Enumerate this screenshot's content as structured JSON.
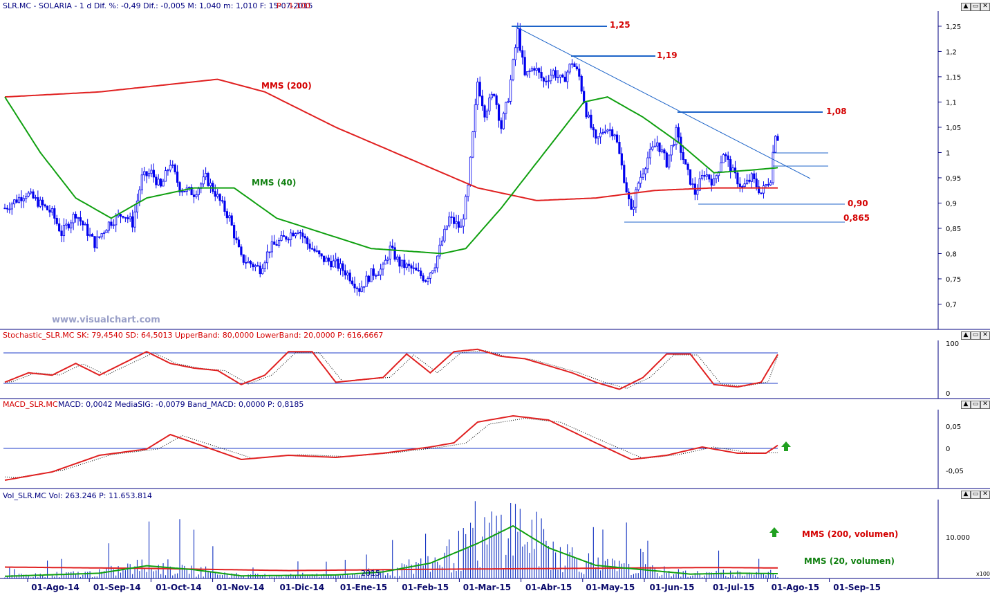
{
  "header": {
    "main": "SLR.MC - SOLARIA - 1 d Dif. %: -0,49 Dif.: -0,005 M: 1,040 m: 1,010 F: 15-07-2015",
    "price": "P : 1,100",
    "stoch": "Stochastic_SLR.MC SK: 79,4540 SD: 64,5013 UpperBand: 80,0000 LowerBand: 20,0000 P: 616,6667",
    "macd_name": "MACD_SLR.MC",
    "macd_vals": "MACD: 0,0042 MediaSIG: -0,0079 Band_MACD: 0,0000 P: 0,8185",
    "vol": "Vol_SLR.MC Vol: 263.246 P: 11.653.814"
  },
  "watermark": "www.visualchart.com",
  "year_label": "2015",
  "window_buttons": [
    "▲",
    "▭",
    "✕"
  ],
  "vol_scale_tag": "x100",
  "colors": {
    "candle": "#0000ee",
    "mma200": "#e02020",
    "mma40": "#10a010",
    "level": "#1c63c8",
    "stoch": "#e02020",
    "macd": "#e02020",
    "bg": "#ffffff",
    "axis": "#000080"
  },
  "annotations": {
    "mms200": "MMS (200)",
    "mms40": "MMS (40)",
    "mms200_vol": "MMS (200, volumen)",
    "mms20_vol": "MMS (20, volumen)"
  },
  "chart_data": [
    {
      "type": "candlestick",
      "title": "SLR.MC - SOLARIA",
      "x_ticks": [
        "01-Ago-14",
        "01-Sep-14",
        "01-Oct-14",
        "01-Nov-14",
        "01-Dic-14",
        "01-Ene-15",
        "01-Feb-15",
        "01-Mar-15",
        "01-Abr-15",
        "01-May-15",
        "01-Jun-15",
        "01-Jul-15",
        "01-Ago-15",
        "01-Sep-15"
      ],
      "y_ticks": [
        "1,25",
        "1,2",
        "1,15",
        "1,1",
        "1,05",
        "1",
        "0,95",
        "0,9",
        "0,85",
        "0,8",
        "0,75",
        "0,7"
      ],
      "ylim": [
        0.65,
        1.28
      ],
      "close_keypoints": [
        [
          0,
          0.89
        ],
        [
          9,
          0.92
        ],
        [
          20,
          0.88
        ],
        [
          24,
          0.84
        ],
        [
          30,
          0.88
        ],
        [
          38,
          0.82
        ],
        [
          44,
          0.86
        ],
        [
          50,
          0.88
        ],
        [
          54,
          0.86
        ],
        [
          58,
          0.95
        ],
        [
          62,
          0.96
        ],
        [
          66,
          0.93
        ],
        [
          70,
          0.98
        ],
        [
          74,
          0.93
        ],
        [
          80,
          0.92
        ],
        [
          85,
          0.95
        ],
        [
          89,
          0.92
        ],
        [
          95,
          0.87
        ],
        [
          100,
          0.79
        ],
        [
          108,
          0.77
        ],
        [
          112,
          0.81
        ],
        [
          118,
          0.83
        ],
        [
          124,
          0.85
        ],
        [
          128,
          0.82
        ],
        [
          134,
          0.79
        ],
        [
          140,
          0.78
        ],
        [
          145,
          0.76
        ],
        [
          150,
          0.73
        ],
        [
          155,
          0.76
        ],
        [
          160,
          0.77
        ],
        [
          163,
          0.81
        ],
        [
          167,
          0.78
        ],
        [
          172,
          0.77
        ],
        [
          178,
          0.75
        ],
        [
          182,
          0.78
        ],
        [
          188,
          0.87
        ],
        [
          193,
          0.85
        ],
        [
          196,
          0.93
        ],
        [
          200,
          1.14
        ],
        [
          203,
          1.08
        ],
        [
          207,
          1.12
        ],
        [
          210,
          1.05
        ],
        [
          213,
          1.11
        ],
        [
          217,
          1.24
        ],
        [
          220,
          1.15
        ],
        [
          224,
          1.17
        ],
        [
          228,
          1.14
        ],
        [
          232,
          1.16
        ],
        [
          236,
          1.14
        ],
        [
          240,
          1.18
        ],
        [
          243,
          1.15
        ],
        [
          246,
          1.08
        ],
        [
          250,
          1.02
        ],
        [
          254,
          1.05
        ],
        [
          258,
          1.04
        ],
        [
          262,
          0.95
        ],
        [
          265,
          0.88
        ],
        [
          268,
          0.94
        ],
        [
          272,
          0.99
        ],
        [
          276,
          1.02
        ],
        [
          280,
          0.98
        ],
        [
          284,
          1.04
        ],
        [
          288,
          0.97
        ],
        [
          292,
          0.92
        ],
        [
          296,
          0.96
        ],
        [
          300,
          0.94
        ],
        [
          304,
          1.0
        ],
        [
          308,
          0.96
        ],
        [
          312,
          0.93
        ],
        [
          316,
          0.95
        ],
        [
          320,
          0.92
        ],
        [
          324,
          0.95
        ],
        [
          325,
          1.0
        ],
        [
          326,
          1.04
        ],
        [
          327,
          1.03
        ]
      ],
      "series": [
        {
          "name": "MMS (200)",
          "values": [
            [
              0,
              1.11
            ],
            [
              40,
              1.12
            ],
            [
              60,
              1.13
            ],
            [
              90,
              1.145
            ],
            [
              110,
              1.12
            ],
            [
              140,
              1.05
            ],
            [
              170,
              0.99
            ],
            [
              200,
              0.93
            ],
            [
              225,
              0.905
            ],
            [
              250,
              0.91
            ],
            [
              275,
              0.925
            ],
            [
              300,
              0.93
            ],
            [
              327,
              0.93
            ]
          ]
        },
        {
          "name": "MMS (40)",
          "values": [
            [
              0,
              1.11
            ],
            [
              15,
              1.0
            ],
            [
              30,
              0.91
            ],
            [
              45,
              0.87
            ],
            [
              60,
              0.91
            ],
            [
              80,
              0.93
            ],
            [
              97,
              0.93
            ],
            [
              115,
              0.87
            ],
            [
              135,
              0.84
            ],
            [
              155,
              0.81
            ],
            [
              170,
              0.805
            ],
            [
              185,
              0.8
            ],
            [
              195,
              0.81
            ],
            [
              210,
              0.89
            ],
            [
              230,
              1.01
            ],
            [
              245,
              1.1
            ],
            [
              255,
              1.11
            ],
            [
              270,
              1.07
            ],
            [
              285,
              1.02
            ],
            [
              300,
              0.96
            ],
            [
              315,
              0.965
            ],
            [
              327,
              0.97
            ]
          ]
        }
      ],
      "levels": [
        "1,25",
        "1,19",
        "1,08",
        "0,90",
        "0,865"
      ]
    },
    {
      "type": "line",
      "title": "Stochastic_SLR.MC",
      "y_ticks": [
        "100",
        "0"
      ],
      "ylim": [
        0,
        100
      ],
      "bands": [
        80,
        20
      ],
      "series": [
        {
          "name": "SK",
          "values": [
            [
              0,
              20
            ],
            [
              10,
              40
            ],
            [
              20,
              35
            ],
            [
              30,
              60
            ],
            [
              40,
              35
            ],
            [
              50,
              60
            ],
            [
              60,
              85
            ],
            [
              70,
              60
            ],
            [
              80,
              50
            ],
            [
              90,
              45
            ],
            [
              100,
              15
            ],
            [
              110,
              35
            ],
            [
              120,
              85
            ],
            [
              130,
              85
            ],
            [
              140,
              20
            ],
            [
              150,
              25
            ],
            [
              160,
              30
            ],
            [
              170,
              80
            ],
            [
              180,
              40
            ],
            [
              190,
              85
            ],
            [
              200,
              90
            ],
            [
              210,
              75
            ],
            [
              220,
              70
            ],
            [
              230,
              55
            ],
            [
              240,
              40
            ],
            [
              250,
              20
            ],
            [
              260,
              5
            ],
            [
              270,
              30
            ],
            [
              280,
              80
            ],
            [
              290,
              80
            ],
            [
              300,
              15
            ],
            [
              310,
              10
            ],
            [
              320,
              20
            ],
            [
              327,
              79
            ]
          ]
        }
      ]
    },
    {
      "type": "line",
      "title": "MACD_SLR.MC",
      "y_ticks": [
        "0,05",
        "0",
        "-0,05"
      ],
      "ylim": [
        -0.1,
        0.09
      ],
      "series": [
        {
          "name": "MACD",
          "values": [
            [
              0,
              -0.08
            ],
            [
              20,
              -0.06
            ],
            [
              40,
              -0.02
            ],
            [
              60,
              -0.005
            ],
            [
              70,
              0.03
            ],
            [
              80,
              0.01
            ],
            [
              100,
              -0.03
            ],
            [
              120,
              -0.02
            ],
            [
              140,
              -0.025
            ],
            [
              160,
              -0.015
            ],
            [
              180,
              0.0
            ],
            [
              190,
              0.01
            ],
            [
              200,
              0.06
            ],
            [
              215,
              0.075
            ],
            [
              230,
              0.065
            ],
            [
              250,
              0.01
            ],
            [
              265,
              -0.03
            ],
            [
              280,
              -0.02
            ],
            [
              295,
              0.0
            ],
            [
              310,
              -0.015
            ],
            [
              322,
              -0.015
            ],
            [
              327,
              0.004
            ]
          ]
        }
      ]
    },
    {
      "type": "bar",
      "title": "Vol_SLR.MC",
      "y_ticks": [
        "10.000"
      ],
      "ylim": [
        0,
        18000
      ],
      "series": [
        {
          "name": "MMS (200, volumen)",
          "values": [
            [
              0,
              2600
            ],
            [
              60,
              2300
            ],
            [
              120,
              1800
            ],
            [
              180,
              2100
            ],
            [
              240,
              2300
            ],
            [
              300,
              2500
            ],
            [
              327,
              2400
            ]
          ]
        },
        {
          "name": "MMS (20, volumen)",
          "values": [
            [
              0,
              500
            ],
            [
              40,
              1200
            ],
            [
              60,
              2900
            ],
            [
              80,
              2000
            ],
            [
              100,
              600
            ],
            [
              140,
              800
            ],
            [
              160,
              1500
            ],
            [
              180,
              3500
            ],
            [
              200,
              8000
            ],
            [
              215,
              12000
            ],
            [
              230,
              7000
            ],
            [
              250,
              3000
            ],
            [
              270,
              2000
            ],
            [
              290,
              1000
            ],
            [
              310,
              1200
            ],
            [
              327,
              1100
            ]
          ]
        }
      ]
    }
  ]
}
